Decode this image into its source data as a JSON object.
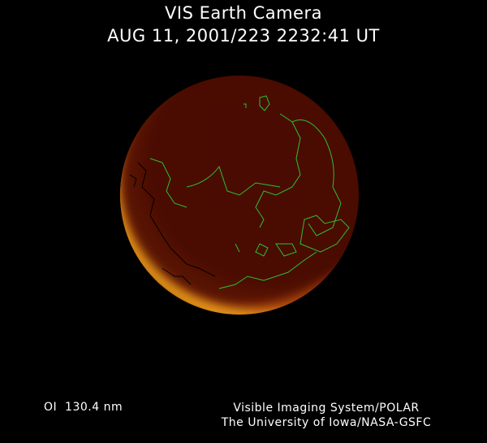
{
  "header": {
    "title": "VIS Earth Camera",
    "timestamp": "AUG 11, 2001/223 2232:41 UT"
  },
  "footer": {
    "wavelength": "OI  130.4 nm",
    "instrument": "Visible Imaging System/POLAR",
    "institution": "The University of Iowa/NASA-GSFC"
  },
  "colors": {
    "background": "#000000",
    "earth_disk": "#4a0c02",
    "aurora_glow": "#ffb020",
    "coastlines_day": "#2fbf2f",
    "coastlines_night": "#000000"
  }
}
